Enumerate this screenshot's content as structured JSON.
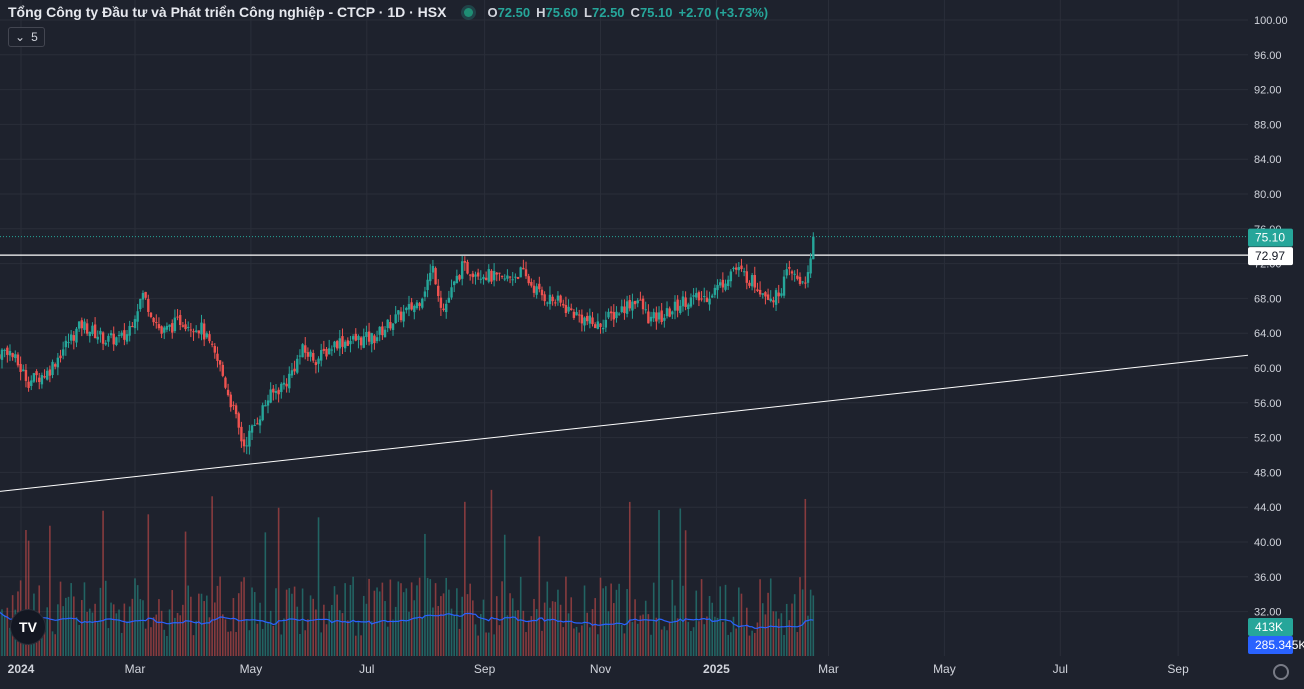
{
  "legend": {
    "symbol": "Tổng Công ty Đầu tư và Phát triển Công nghiệp - CTCP · 1D · HSX",
    "o_label": "O",
    "o": "72.50",
    "h_label": "H",
    "h": "75.60",
    "l_label": "L",
    "l": "72.50",
    "c_label": "C",
    "c": "75.10",
    "change": "+2.70 (+3.73%)"
  },
  "indicator_toggle": "5",
  "logo_text": "TV",
  "colors": {
    "background": "#1e222d",
    "up": "#26a69a",
    "down": "#ef5350",
    "volume_ma": "#2962ff",
    "line": "#ffffff"
  },
  "chart_data": {
    "type": "candlestick",
    "title": "Tổng Công ty Đầu tư và Phát triển Công nghiệp - CTCP · 1D · HSX",
    "price_axis_ticks": [
      "100.00",
      "96.00",
      "92.00",
      "88.00",
      "84.00",
      "80.00",
      "76.00",
      "72.00",
      "68.00",
      "64.00",
      "60.00",
      "56.00",
      "52.00",
      "48.00",
      "44.00",
      "40.00",
      "36.00",
      "32.00"
    ],
    "time_axis_ticks": [
      "2024",
      "Mar",
      "May",
      "Jul",
      "Sep",
      "Nov",
      "2025",
      "Mar",
      "May",
      "Jul",
      "Sep"
    ],
    "ylim": [
      28,
      102
    ],
    "last_price": "75.10",
    "horizontal_line": "72.97",
    "volume_label": "413K",
    "volume_ma_label": "285.345K",
    "trend_line": [
      {
        "x": "2023-12-20",
        "y": 45.8
      },
      {
        "x": "2025-10-30",
        "y": 62.0
      }
    ],
    "price_path": [
      [
        "2023-12-15",
        61.0
      ],
      [
        "2023-12-25",
        62.2
      ],
      [
        "2024-01-05",
        58.5
      ],
      [
        "2024-01-15",
        59.5
      ],
      [
        "2024-01-25",
        62.8
      ],
      [
        "2024-02-02",
        65.0
      ],
      [
        "2024-02-15",
        63.2
      ],
      [
        "2024-02-25",
        63.5
      ],
      [
        "2024-03-05",
        68.5
      ],
      [
        "2024-03-15",
        64.0
      ],
      [
        "2024-03-25",
        65.5
      ],
      [
        "2024-04-05",
        64.5
      ],
      [
        "2024-04-15",
        60.0
      ],
      [
        "2024-04-22",
        55.0
      ],
      [
        "2024-04-27",
        51.0
      ],
      [
        "2024-05-03",
        53.5
      ],
      [
        "2024-05-10",
        56.5
      ],
      [
        "2024-05-20",
        58.5
      ],
      [
        "2024-05-28",
        62.0
      ],
      [
        "2024-06-05",
        61.0
      ],
      [
        "2024-06-15",
        63.0
      ],
      [
        "2024-06-25",
        63.2
      ],
      [
        "2024-07-05",
        63.5
      ],
      [
        "2024-07-15",
        65.5
      ],
      [
        "2024-07-22",
        66.5
      ],
      [
        "2024-07-28",
        67.5
      ],
      [
        "2024-08-05",
        71.5
      ],
      [
        "2024-08-10",
        66.5
      ],
      [
        "2024-08-20",
        71.5
      ],
      [
        "2024-08-30",
        71.0
      ],
      [
        "2024-09-10",
        70.0
      ],
      [
        "2024-09-20",
        71.0
      ],
      [
        "2024-09-30",
        68.5
      ],
      [
        "2024-10-10",
        67.5
      ],
      [
        "2024-10-20",
        66.0
      ],
      [
        "2024-10-30",
        64.8
      ],
      [
        "2024-11-10",
        66.5
      ],
      [
        "2024-11-20",
        68.0
      ],
      [
        "2024-11-27",
        65.5
      ],
      [
        "2024-12-05",
        66.0
      ],
      [
        "2024-12-15",
        67.8
      ],
      [
        "2024-12-25",
        68.0
      ],
      [
        "2025-01-03",
        69.5
      ],
      [
        "2025-01-10",
        71.5
      ],
      [
        "2025-01-17",
        70.5
      ],
      [
        "2025-01-25",
        69.0
      ],
      [
        "2025-02-01",
        68.0
      ],
      [
        "2025-02-08",
        71.0
      ],
      [
        "2025-02-14",
        70.0
      ],
      [
        "2025-02-19",
        70.5
      ],
      [
        "2025-02-21",
        75.1
      ]
    ]
  }
}
